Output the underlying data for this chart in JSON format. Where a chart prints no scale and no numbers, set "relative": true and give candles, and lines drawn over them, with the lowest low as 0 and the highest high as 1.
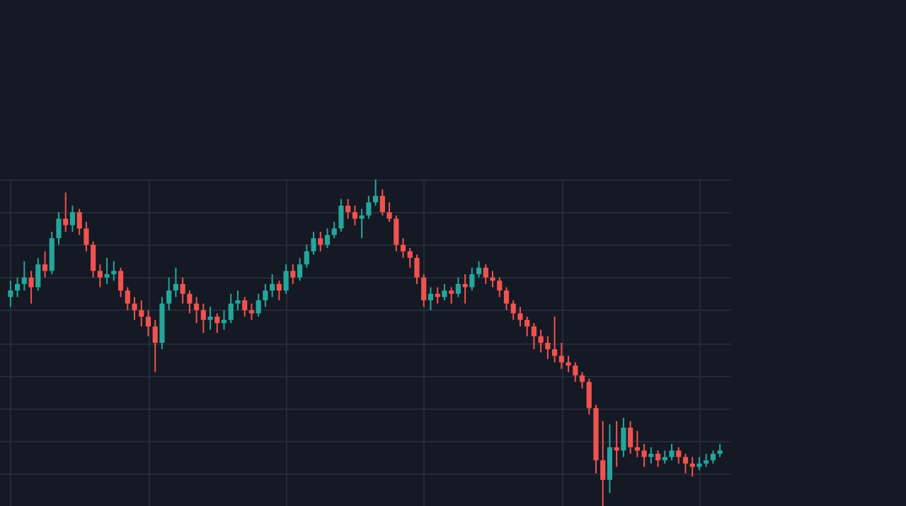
{
  "chart_data": {
    "type": "candlestick",
    "relative": true,
    "grid": true,
    "categories": [
      null,
      null,
      null,
      null,
      null,
      null,
      null,
      null,
      null,
      null,
      null,
      null,
      null,
      null,
      null,
      null,
      null,
      null,
      null,
      null,
      null,
      null,
      null,
      null,
      null,
      null,
      null,
      null,
      null,
      null,
      null,
      null,
      null,
      null,
      null,
      null,
      null,
      null,
      null,
      null,
      null,
      null,
      null,
      null,
      null,
      null,
      null,
      null,
      null,
      null,
      null,
      null,
      null,
      null,
      null,
      null,
      null,
      null,
      null,
      null,
      null,
      null,
      null,
      null,
      null,
      null,
      null,
      null,
      null,
      null,
      null,
      null,
      null,
      null,
      null,
      null,
      null,
      null,
      null,
      null,
      null,
      null,
      null,
      null,
      null,
      null,
      null,
      null,
      null,
      null,
      null,
      null,
      null,
      null,
      null,
      null,
      null,
      null,
      null,
      null,
      null,
      null,
      null,
      null
    ],
    "ohlc": [
      [
        0.64,
        0.69,
        0.61,
        0.66
      ],
      [
        0.66,
        0.7,
        0.64,
        0.68
      ],
      [
        0.68,
        0.75,
        0.66,
        0.7
      ],
      [
        0.7,
        0.72,
        0.62,
        0.67
      ],
      [
        0.67,
        0.76,
        0.66,
        0.74
      ],
      [
        0.74,
        0.78,
        0.7,
        0.72
      ],
      [
        0.72,
        0.84,
        0.71,
        0.82
      ],
      [
        0.82,
        0.9,
        0.8,
        0.88
      ],
      [
        0.88,
        0.96,
        0.84,
        0.86
      ],
      [
        0.86,
        0.92,
        0.84,
        0.9
      ],
      [
        0.9,
        0.91,
        0.83,
        0.85
      ],
      [
        0.85,
        0.87,
        0.78,
        0.8
      ],
      [
        0.8,
        0.81,
        0.7,
        0.72
      ],
      [
        0.72,
        0.74,
        0.67,
        0.7
      ],
      [
        0.7,
        0.76,
        0.68,
        0.71
      ],
      [
        0.71,
        0.75,
        0.69,
        0.72
      ],
      [
        0.72,
        0.73,
        0.64,
        0.66
      ],
      [
        0.66,
        0.67,
        0.6,
        0.62
      ],
      [
        0.62,
        0.64,
        0.57,
        0.6
      ],
      [
        0.6,
        0.63,
        0.55,
        0.58
      ],
      [
        0.58,
        0.6,
        0.52,
        0.55
      ],
      [
        0.55,
        0.57,
        0.41,
        0.5
      ],
      [
        0.5,
        0.64,
        0.48,
        0.62
      ],
      [
        0.62,
        0.7,
        0.6,
        0.66
      ],
      [
        0.66,
        0.73,
        0.64,
        0.68
      ],
      [
        0.68,
        0.7,
        0.62,
        0.65
      ],
      [
        0.65,
        0.66,
        0.59,
        0.62
      ],
      [
        0.62,
        0.64,
        0.56,
        0.6
      ],
      [
        0.6,
        0.62,
        0.53,
        0.57
      ],
      [
        0.57,
        0.61,
        0.54,
        0.58
      ],
      [
        0.58,
        0.59,
        0.53,
        0.56
      ],
      [
        0.56,
        0.6,
        0.54,
        0.57
      ],
      [
        0.57,
        0.65,
        0.56,
        0.62
      ],
      [
        0.62,
        0.66,
        0.6,
        0.63
      ],
      [
        0.63,
        0.64,
        0.58,
        0.6
      ],
      [
        0.6,
        0.62,
        0.57,
        0.59
      ],
      [
        0.59,
        0.65,
        0.58,
        0.63
      ],
      [
        0.63,
        0.68,
        0.61,
        0.66
      ],
      [
        0.66,
        0.71,
        0.64,
        0.68
      ],
      [
        0.68,
        0.69,
        0.63,
        0.66
      ],
      [
        0.66,
        0.74,
        0.65,
        0.72
      ],
      [
        0.72,
        0.74,
        0.68,
        0.7
      ],
      [
        0.7,
        0.76,
        0.69,
        0.74
      ],
      [
        0.74,
        0.8,
        0.73,
        0.78
      ],
      [
        0.78,
        0.84,
        0.77,
        0.82
      ],
      [
        0.82,
        0.84,
        0.78,
        0.8
      ],
      [
        0.8,
        0.85,
        0.79,
        0.83
      ],
      [
        0.83,
        0.87,
        0.82,
        0.85
      ],
      [
        0.85,
        0.94,
        0.84,
        0.92
      ],
      [
        0.92,
        0.94,
        0.88,
        0.9
      ],
      [
        0.9,
        0.92,
        0.86,
        0.88
      ],
      [
        0.88,
        0.91,
        0.82,
        0.89
      ],
      [
        0.89,
        0.95,
        0.88,
        0.93
      ],
      [
        0.93,
        1.0,
        0.92,
        0.95
      ],
      [
        0.95,
        0.97,
        0.89,
        0.9
      ],
      [
        0.9,
        0.93,
        0.87,
        0.88
      ],
      [
        0.88,
        0.89,
        0.78,
        0.8
      ],
      [
        0.8,
        0.82,
        0.76,
        0.78
      ],
      [
        0.78,
        0.79,
        0.73,
        0.76
      ],
      [
        0.76,
        0.77,
        0.68,
        0.7
      ],
      [
        0.7,
        0.71,
        0.61,
        0.63
      ],
      [
        0.63,
        0.67,
        0.6,
        0.65
      ],
      [
        0.65,
        0.67,
        0.62,
        0.64
      ],
      [
        0.64,
        0.68,
        0.63,
        0.66
      ],
      [
        0.66,
        0.67,
        0.62,
        0.65
      ],
      [
        0.65,
        0.7,
        0.64,
        0.68
      ],
      [
        0.68,
        0.71,
        0.62,
        0.67
      ],
      [
        0.67,
        0.73,
        0.66,
        0.71
      ],
      [
        0.71,
        0.75,
        0.7,
        0.73
      ],
      [
        0.73,
        0.74,
        0.68,
        0.7
      ],
      [
        0.7,
        0.72,
        0.67,
        0.69
      ],
      [
        0.69,
        0.7,
        0.64,
        0.66
      ],
      [
        0.66,
        0.67,
        0.6,
        0.62
      ],
      [
        0.62,
        0.63,
        0.57,
        0.59
      ],
      [
        0.59,
        0.61,
        0.55,
        0.57
      ],
      [
        0.57,
        0.58,
        0.52,
        0.55
      ],
      [
        0.55,
        0.56,
        0.48,
        0.52
      ],
      [
        0.52,
        0.54,
        0.47,
        0.5
      ],
      [
        0.5,
        0.52,
        0.45,
        0.48
      ],
      [
        0.48,
        0.58,
        0.44,
        0.46
      ],
      [
        0.46,
        0.5,
        0.42,
        0.44
      ],
      [
        0.44,
        0.46,
        0.41,
        0.43
      ],
      [
        0.43,
        0.44,
        0.38,
        0.4
      ],
      [
        0.4,
        0.41,
        0.36,
        0.38
      ],
      [
        0.38,
        0.39,
        0.28,
        0.3
      ],
      [
        0.3,
        0.31,
        0.1,
        0.14
      ],
      [
        0.14,
        0.26,
        0.0,
        0.08
      ],
      [
        0.08,
        0.25,
        0.04,
        0.18
      ],
      [
        0.18,
        0.26,
        0.12,
        0.17
      ],
      [
        0.17,
        0.27,
        0.15,
        0.24
      ],
      [
        0.24,
        0.26,
        0.16,
        0.18
      ],
      [
        0.18,
        0.23,
        0.15,
        0.17
      ],
      [
        0.17,
        0.19,
        0.12,
        0.15
      ],
      [
        0.15,
        0.18,
        0.13,
        0.16
      ],
      [
        0.16,
        0.17,
        0.12,
        0.14
      ],
      [
        0.14,
        0.17,
        0.13,
        0.15
      ],
      [
        0.15,
        0.19,
        0.14,
        0.17
      ],
      [
        0.17,
        0.18,
        0.13,
        0.15
      ],
      [
        0.15,
        0.16,
        0.1,
        0.13
      ],
      [
        0.13,
        0.15,
        0.09,
        0.12
      ],
      [
        0.12,
        0.15,
        0.11,
        0.13
      ],
      [
        0.13,
        0.16,
        0.12,
        0.14
      ],
      [
        0.14,
        0.17,
        0.13,
        0.16
      ],
      [
        0.16,
        0.19,
        0.15,
        0.17
      ]
    ],
    "colors": [
      "#26a69a",
      "#26a69a",
      "#26a69a",
      "#ef5350",
      "#26a69a",
      "#ef5350",
      "#26a69a",
      "#26a69a",
      "#ef5350",
      "#26a69a",
      "#ef5350",
      "#ef5350",
      "#ef5350",
      "#ef5350",
      "#26a69a",
      "#26a69a",
      "#ef5350",
      "#ef5350",
      "#ef5350",
      "#ef5350",
      "#ef5350",
      "#ef5350",
      "#26a69a",
      "#26a69a",
      "#26a69a",
      "#ef5350",
      "#ef5350",
      "#ef5350",
      "#ef5350",
      "#26a69a",
      "#ef5350",
      "#26a69a",
      "#26a69a",
      "#26a69a",
      "#ef5350",
      "#ef5350",
      "#26a69a",
      "#26a69a",
      "#26a69a",
      "#ef5350",
      "#26a69a",
      "#ef5350",
      "#26a69a",
      "#26a69a",
      "#26a69a",
      "#ef5350",
      "#26a69a",
      "#26a69a",
      "#26a69a",
      "#ef5350",
      "#ef5350",
      "#26a69a",
      "#26a69a",
      "#26a69a",
      "#ef5350",
      "#ef5350",
      "#ef5350",
      "#ef5350",
      "#ef5350",
      "#ef5350",
      "#ef5350",
      "#26a69a",
      "#ef5350",
      "#26a69a",
      "#ef5350",
      "#26a69a",
      "#ef5350",
      "#26a69a",
      "#26a69a",
      "#ef5350",
      "#ef5350",
      "#ef5350",
      "#ef5350",
      "#ef5350",
      "#ef5350",
      "#ef5350",
      "#ef5350",
      "#ef5350",
      "#ef5350",
      "#ef5350",
      "#ef5350",
      "#ef5350",
      "#ef5350",
      "#ef5350",
      "#ef5350",
      "#ef5350",
      "#ef5350",
      "#26a69a",
      "#ef5350",
      "#26a69a",
      "#ef5350",
      "#ef5350",
      "#ef5350",
      "#26a69a",
      "#ef5350",
      "#26a69a",
      "#26a69a",
      "#ef5350",
      "#ef5350",
      "#ef5350",
      "#26a69a",
      "#26a69a",
      "#26a69a",
      "#26a69a"
    ]
  }
}
